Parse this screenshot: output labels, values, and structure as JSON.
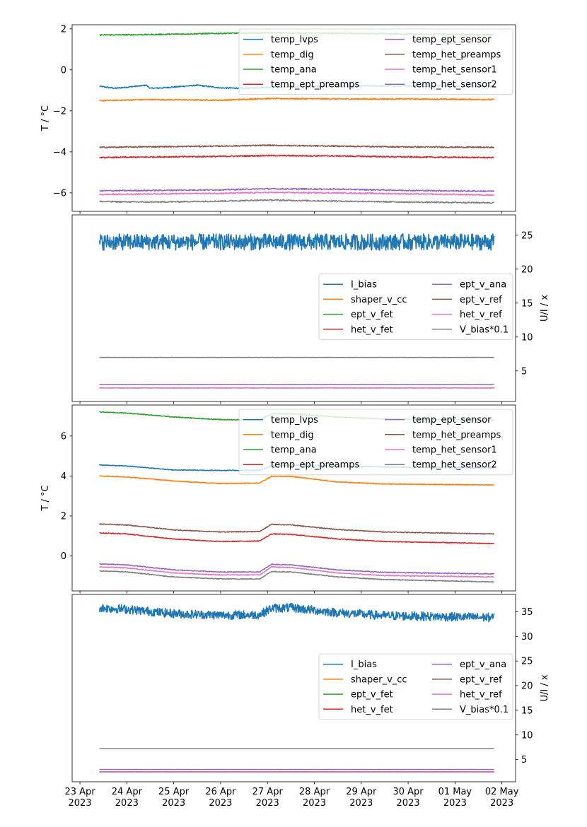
{
  "figure": {
    "xaxis": {
      "tick_labels": [
        [
          "23 Apr",
          "2023"
        ],
        [
          "24 Apr",
          "2023"
        ],
        [
          "25 Apr",
          "2023"
        ],
        [
          "26 Apr",
          "2023"
        ],
        [
          "27 Apr",
          "2023"
        ],
        [
          "28 Apr",
          "2023"
        ],
        [
          "29 Apr",
          "2023"
        ],
        [
          "30 Apr",
          "2023"
        ],
        [
          "01 May",
          "2023"
        ],
        [
          "02 May",
          "2023"
        ]
      ],
      "tick_dates": [
        "2023-04-23",
        "2023-04-24",
        "2023-04-25",
        "2023-04-26",
        "2023-04-27",
        "2023-04-28",
        "2023-04-29",
        "2023-04-30",
        "2023-05-01",
        "2023-05-02"
      ],
      "range": [
        "2023-04-22T20:00",
        "2023-05-02T07:00"
      ],
      "data_range": [
        "2023-04-23T10:00",
        "2023-05-01T20:00"
      ]
    }
  },
  "chart_data": [
    {
      "type": "line",
      "ylabel": "T / °C",
      "ylim": [
        -6.9,
        2.2
      ],
      "yticks": [
        2,
        0,
        -2,
        -4,
        -6
      ],
      "ytick_labels": [
        "2",
        "0",
        "−2",
        "−4",
        "−6"
      ],
      "yaxis_side": "left",
      "legend": "top-right",
      "noise": 0.03,
      "series": [
        {
          "name": "temp_lvps",
          "color": "#1f77b4",
          "x": [
            "2023-04-23T10:00",
            "2023-04-23T18:00",
            "2023-04-24T10:00",
            "2023-04-24T12:00",
            "2023-04-24T18:00",
            "2023-04-25T12:00",
            "2023-04-26T00:00",
            "2023-04-26T12:00",
            "2023-04-27T00:00",
            "2023-04-28T00:00",
            "2023-04-30T00:00",
            "2023-05-01T20:00"
          ],
          "values": [
            -0.8,
            -0.9,
            -0.75,
            -0.9,
            -0.88,
            -0.75,
            -0.88,
            -0.9,
            -0.85,
            -0.8,
            -0.78,
            -0.8
          ]
        },
        {
          "name": "temp_dig",
          "color": "#ff7f0e",
          "x": [
            "2023-04-23T10:00",
            "2023-04-24T12:00",
            "2023-04-26T00:00",
            "2023-04-27T00:00",
            "2023-04-28T12:00",
            "2023-04-30T00:00",
            "2023-05-01T20:00"
          ],
          "values": [
            -1.5,
            -1.45,
            -1.48,
            -1.4,
            -1.42,
            -1.42,
            -1.45
          ]
        },
        {
          "name": "temp_ana",
          "color": "#2ca02c",
          "x": [
            "2023-04-23T10:00",
            "2023-04-24T12:00",
            "2023-04-26T00:00",
            "2023-04-27T00:00",
            "2023-04-28T12:00",
            "2023-04-30T00:00",
            "2023-05-01T20:00"
          ],
          "values": [
            1.7,
            1.72,
            1.78,
            1.8,
            1.78,
            1.75,
            1.72
          ]
        },
        {
          "name": "temp_ept_preamps",
          "color": "#d62728",
          "x": [
            "2023-04-23T10:00",
            "2023-04-24T12:00",
            "2023-04-26T00:00",
            "2023-04-27T00:00",
            "2023-04-28T12:00",
            "2023-04-30T00:00",
            "2023-05-01T20:00"
          ],
          "values": [
            -4.28,
            -4.25,
            -4.22,
            -4.18,
            -4.2,
            -4.25,
            -4.28
          ]
        },
        {
          "name": "temp_ept_sensor",
          "color": "#9467bd",
          "x": [
            "2023-04-23T10:00",
            "2023-04-24T12:00",
            "2023-04-26T00:00",
            "2023-04-27T00:00",
            "2023-04-28T12:00",
            "2023-04-30T00:00",
            "2023-05-01T20:00"
          ],
          "values": [
            -5.9,
            -5.88,
            -5.85,
            -5.8,
            -5.82,
            -5.88,
            -5.92
          ]
        },
        {
          "name": "temp_het_preamps",
          "color": "#8c564b",
          "x": [
            "2023-04-23T10:00",
            "2023-04-24T12:00",
            "2023-04-26T00:00",
            "2023-04-27T00:00",
            "2023-04-28T12:00",
            "2023-04-30T00:00",
            "2023-05-01T20:00"
          ],
          "values": [
            -3.78,
            -3.75,
            -3.72,
            -3.68,
            -3.72,
            -3.76,
            -3.78
          ]
        },
        {
          "name": "temp_het_sensor1",
          "color": "#e377c2",
          "x": [
            "2023-04-23T10:00",
            "2023-04-24T12:00",
            "2023-04-26T00:00",
            "2023-04-27T00:00",
            "2023-04-28T12:00",
            "2023-04-30T00:00",
            "2023-05-01T20:00"
          ],
          "values": [
            -6.08,
            -6.05,
            -6.02,
            -5.98,
            -6.0,
            -6.05,
            -6.1
          ]
        },
        {
          "name": "temp_het_sensor2",
          "color": "#7f7f7f",
          "x": [
            "2023-04-23T10:00",
            "2023-04-24T12:00",
            "2023-04-26T00:00",
            "2023-04-27T00:00",
            "2023-04-28T12:00",
            "2023-04-30T00:00",
            "2023-05-01T20:00"
          ],
          "values": [
            -6.42,
            -6.45,
            -6.4,
            -6.35,
            -6.4,
            -6.45,
            -6.48
          ]
        }
      ]
    },
    {
      "type": "line",
      "ylabel": "U/I / x",
      "ylim": [
        0.5,
        28.0
      ],
      "yticks": [
        25,
        20,
        15,
        10,
        5
      ],
      "ytick_labels": [
        "25",
        "20",
        "15",
        "10",
        "5"
      ],
      "yaxis_side": "right",
      "legend": "center-right",
      "noise": 1.2,
      "series": [
        {
          "name": "I_bias",
          "color": "#1f77b4",
          "x": [
            "2023-04-23T10:00",
            "2023-05-01T20:00"
          ],
          "values": [
            24.0,
            24.0
          ]
        },
        {
          "name": "shaper_v_cc",
          "color": "#ff7f0e",
          "x": [
            "2023-04-23T10:00",
            "2023-05-01T20:00"
          ],
          "values": [
            2.5,
            2.5
          ]
        },
        {
          "name": "ept_v_fet",
          "color": "#2ca02c",
          "x": [
            "2023-04-23T10:00",
            "2023-05-01T20:00"
          ],
          "values": [
            2.5,
            2.5
          ]
        },
        {
          "name": "het_v_fet",
          "color": "#d62728",
          "x": [
            "2023-04-23T10:00",
            "2023-05-01T20:00"
          ],
          "values": [
            2.5,
            2.5
          ]
        },
        {
          "name": "ept_v_ana",
          "color": "#9467bd",
          "x": [
            "2023-04-23T10:00",
            "2023-05-01T20:00"
          ],
          "values": [
            3.0,
            3.0
          ]
        },
        {
          "name": "ept_v_ref",
          "color": "#8c564b",
          "x": [
            "2023-04-23T10:00",
            "2023-05-01T20:00"
          ],
          "values": [
            2.5,
            2.5
          ]
        },
        {
          "name": "het_v_ref",
          "color": "#e377c2",
          "x": [
            "2023-04-23T10:00",
            "2023-05-01T20:00"
          ],
          "values": [
            2.5,
            2.5
          ]
        },
        {
          "name": "V_bias*0.1",
          "color": "#7f7f7f",
          "x": [
            "2023-04-23T10:00",
            "2023-05-01T20:00"
          ],
          "values": [
            7.0,
            7.0
          ]
        }
      ]
    },
    {
      "type": "line",
      "ylabel": "T / °C",
      "ylim": [
        -1.75,
        7.55
      ],
      "yticks": [
        6,
        4,
        2,
        0
      ],
      "ytick_labels": [
        "6",
        "4",
        "2",
        "0"
      ],
      "yaxis_side": "left",
      "legend": "top-right",
      "noise": 0.02,
      "series": [
        {
          "name": "temp_lvps",
          "color": "#1f77b4",
          "x": [
            "2023-04-23T10:00",
            "2023-04-24T00:00",
            "2023-04-25T00:00",
            "2023-04-26T00:00",
            "2023-04-26T20:00",
            "2023-04-27T02:00",
            "2023-04-27T12:00",
            "2023-04-28T12:00",
            "2023-04-29T12:00",
            "2023-05-01T20:00"
          ],
          "values": [
            4.55,
            4.5,
            4.3,
            4.28,
            4.28,
            4.5,
            4.55,
            4.5,
            4.45,
            4.4
          ]
        },
        {
          "name": "temp_dig",
          "color": "#ff7f0e",
          "x": [
            "2023-04-23T10:00",
            "2023-04-24T00:00",
            "2023-04-25T00:00",
            "2023-04-26T00:00",
            "2023-04-26T20:00",
            "2023-04-27T02:00",
            "2023-04-27T12:00",
            "2023-04-28T12:00",
            "2023-04-29T12:00",
            "2023-05-01T20:00"
          ],
          "values": [
            4.0,
            3.95,
            3.75,
            3.62,
            3.65,
            3.98,
            3.98,
            3.7,
            3.6,
            3.55
          ]
        },
        {
          "name": "temp_ana",
          "color": "#2ca02c",
          "x": [
            "2023-04-23T10:00",
            "2023-04-24T00:00",
            "2023-04-25T00:00",
            "2023-04-26T00:00",
            "2023-04-26T20:00",
            "2023-04-27T02:00",
            "2023-04-27T12:00",
            "2023-04-28T12:00",
            "2023-04-29T12:00",
            "2023-05-01T20:00"
          ],
          "values": [
            7.2,
            7.15,
            6.95,
            6.82,
            6.8,
            7.1,
            7.12,
            6.95,
            6.85,
            6.8
          ]
        },
        {
          "name": "temp_ept_preamps",
          "color": "#d62728",
          "x": [
            "2023-04-23T10:00",
            "2023-04-24T00:00",
            "2023-04-25T00:00",
            "2023-04-26T00:00",
            "2023-04-26T20:00",
            "2023-04-27T02:00",
            "2023-04-27T12:00",
            "2023-04-28T12:00",
            "2023-04-29T12:00",
            "2023-05-01T20:00"
          ],
          "values": [
            1.15,
            1.1,
            0.85,
            0.72,
            0.75,
            1.1,
            1.08,
            0.85,
            0.72,
            0.62
          ]
        },
        {
          "name": "temp_ept_sensor",
          "color": "#9467bd",
          "x": [
            "2023-04-23T10:00",
            "2023-04-24T00:00",
            "2023-04-25T00:00",
            "2023-04-26T00:00",
            "2023-04-26T20:00",
            "2023-04-27T02:00",
            "2023-04-27T12:00",
            "2023-04-28T12:00",
            "2023-04-29T12:00",
            "2023-05-01T20:00"
          ],
          "values": [
            -0.4,
            -0.45,
            -0.7,
            -0.8,
            -0.8,
            -0.42,
            -0.45,
            -0.7,
            -0.82,
            -0.9
          ]
        },
        {
          "name": "temp_het_preamps",
          "color": "#8c564b",
          "x": [
            "2023-04-23T10:00",
            "2023-04-24T00:00",
            "2023-04-25T00:00",
            "2023-04-26T00:00",
            "2023-04-26T20:00",
            "2023-04-27T02:00",
            "2023-04-27T12:00",
            "2023-04-28T12:00",
            "2023-04-29T12:00",
            "2023-05-01T20:00"
          ],
          "values": [
            1.6,
            1.55,
            1.3,
            1.2,
            1.22,
            1.58,
            1.55,
            1.32,
            1.2,
            1.1
          ]
        },
        {
          "name": "temp_het_sensor1",
          "color": "#e377c2",
          "x": [
            "2023-04-23T10:00",
            "2023-04-24T00:00",
            "2023-04-25T00:00",
            "2023-04-26T00:00",
            "2023-04-26T20:00",
            "2023-04-27T02:00",
            "2023-04-27T12:00",
            "2023-04-28T12:00",
            "2023-04-29T12:00",
            "2023-05-01T20:00"
          ],
          "values": [
            -0.55,
            -0.6,
            -0.85,
            -0.95,
            -0.95,
            -0.55,
            -0.58,
            -0.85,
            -0.98,
            -1.05
          ]
        },
        {
          "name": "temp_het_sensor2",
          "color": "#7f7f7f",
          "x": [
            "2023-04-23T10:00",
            "2023-04-24T00:00",
            "2023-04-25T00:00",
            "2023-04-26T00:00",
            "2023-04-26T20:00",
            "2023-04-27T02:00",
            "2023-04-27T12:00",
            "2023-04-28T12:00",
            "2023-04-29T12:00",
            "2023-05-01T20:00"
          ],
          "values": [
            -0.75,
            -0.8,
            -1.05,
            -1.15,
            -1.15,
            -0.78,
            -0.8,
            -1.05,
            -1.18,
            -1.3
          ]
        }
      ]
    },
    {
      "type": "line",
      "ylabel": "U/I / x",
      "ylim": [
        0.5,
        38.5
      ],
      "yticks": [
        35,
        30,
        25,
        20,
        15,
        10,
        5
      ],
      "ytick_labels": [
        "35",
        "30",
        "25",
        "20",
        "15",
        "10",
        "5"
      ],
      "yaxis_side": "right",
      "legend": "center-right",
      "noise": 0.9,
      "series": [
        {
          "name": "I_bias",
          "color": "#1f77b4",
          "x": [
            "2023-04-23T10:00",
            "2023-04-24T00:00",
            "2023-04-25T00:00",
            "2023-04-26T00:00",
            "2023-04-26T20:00",
            "2023-04-27T02:00",
            "2023-04-27T12:00",
            "2023-04-28T12:00",
            "2023-04-29T12:00",
            "2023-05-01T20:00"
          ],
          "values": [
            35.8,
            35.5,
            34.6,
            34.3,
            34.4,
            35.7,
            35.8,
            34.8,
            34.2,
            33.8
          ]
        },
        {
          "name": "shaper_v_cc",
          "color": "#ff7f0e",
          "x": [
            "2023-04-23T10:00",
            "2023-05-01T20:00"
          ],
          "values": [
            2.5,
            2.5
          ]
        },
        {
          "name": "ept_v_fet",
          "color": "#2ca02c",
          "x": [
            "2023-04-23T10:00",
            "2023-05-01T20:00"
          ],
          "values": [
            2.5,
            2.5
          ]
        },
        {
          "name": "het_v_fet",
          "color": "#d62728",
          "x": [
            "2023-04-23T10:00",
            "2023-05-01T20:00"
          ],
          "values": [
            2.5,
            2.5
          ]
        },
        {
          "name": "ept_v_ana",
          "color": "#9467bd",
          "x": [
            "2023-04-23T10:00",
            "2023-05-01T20:00"
          ],
          "values": [
            3.0,
            3.0
          ]
        },
        {
          "name": "ept_v_ref",
          "color": "#8c564b",
          "x": [
            "2023-04-23T10:00",
            "2023-05-01T20:00"
          ],
          "values": [
            2.5,
            2.5
          ]
        },
        {
          "name": "het_v_ref",
          "color": "#e377c2",
          "x": [
            "2023-04-23T10:00",
            "2023-05-01T20:00"
          ],
          "values": [
            2.5,
            2.5
          ]
        },
        {
          "name": "V_bias*0.1",
          "color": "#7f7f7f",
          "x": [
            "2023-04-23T10:00",
            "2023-05-01T20:00"
          ],
          "values": [
            7.2,
            7.2
          ]
        }
      ]
    }
  ]
}
